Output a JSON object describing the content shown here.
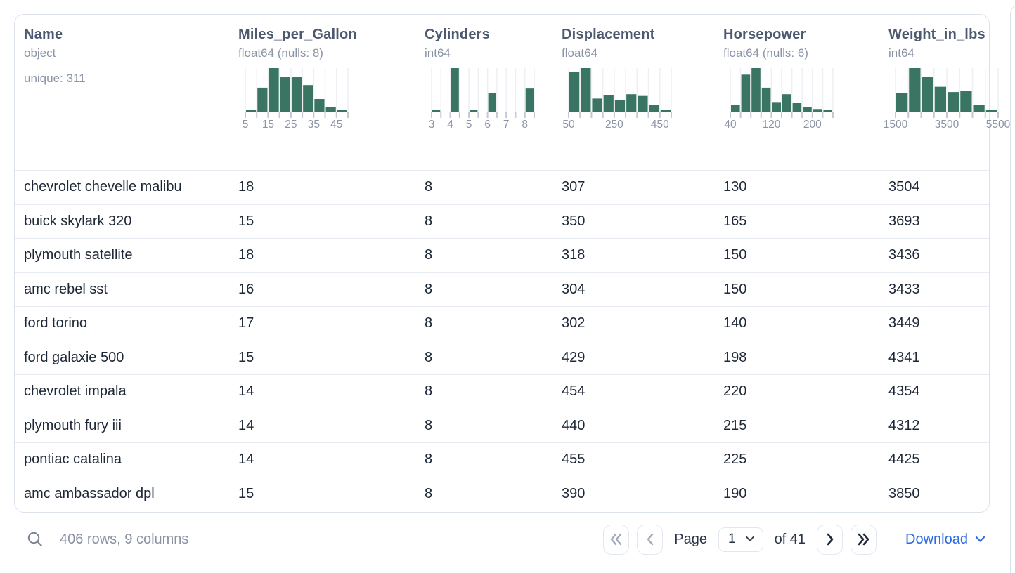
{
  "table": {
    "columns": [
      {
        "name": "Name",
        "type": "object",
        "extra": "unique: 311",
        "histogram": null
      },
      {
        "name": "Miles_per_Gallon",
        "type": "float64 (nulls: 8)",
        "histogram": {
          "bins": [
            3,
            55,
            100,
            79,
            79,
            61,
            29,
            11,
            3
          ],
          "ticks": [
            "5",
            "",
            "15",
            "",
            "25",
            "",
            "35",
            "",
            "45",
            ""
          ]
        }
      },
      {
        "name": "Cylinders",
        "type": "int64",
        "histogram": {
          "bins": [
            4,
            0,
            100,
            0,
            3,
            0,
            42,
            0,
            0,
            0,
            53
          ],
          "ticks": [
            "3",
            "",
            "4",
            "",
            "5",
            "",
            "6",
            "",
            "7",
            "",
            "8",
            ""
          ]
        }
      },
      {
        "name": "Displacement",
        "type": "float64",
        "histogram": {
          "bins": [
            92,
            100,
            30,
            38,
            27,
            40,
            36,
            15,
            4
          ],
          "ticks": [
            "50",
            "",
            "",
            "",
            "250",
            "",
            "",
            "",
            "450",
            ""
          ]
        }
      },
      {
        "name": "Horsepower",
        "type": "float64 (nulls: 6)",
        "histogram": {
          "bins": [
            15,
            85,
            100,
            55,
            22,
            40,
            20,
            10,
            6,
            4
          ],
          "ticks": [
            "40",
            "",
            "",
            "",
            "120",
            "",
            "",
            "",
            "200",
            "",
            ""
          ]
        }
      },
      {
        "name": "Weight_in_lbs",
        "type": "int64",
        "histogram": {
          "bins": [
            42,
            100,
            80,
            57,
            45,
            48,
            16,
            3
          ],
          "ticks": [
            "1500",
            "",
            "",
            "",
            "3500",
            "",
            "",
            "",
            "5500"
          ]
        }
      }
    ],
    "rows": [
      [
        "chevrolet chevelle malibu",
        "18",
        "8",
        "307",
        "130",
        "3504"
      ],
      [
        "buick skylark 320",
        "15",
        "8",
        "350",
        "165",
        "3693"
      ],
      [
        "plymouth satellite",
        "18",
        "8",
        "318",
        "150",
        "3436"
      ],
      [
        "amc rebel sst",
        "16",
        "8",
        "304",
        "150",
        "3433"
      ],
      [
        "ford torino",
        "17",
        "8",
        "302",
        "140",
        "3449"
      ],
      [
        "ford galaxie 500",
        "15",
        "8",
        "429",
        "198",
        "4341"
      ],
      [
        "chevrolet impala",
        "14",
        "8",
        "454",
        "220",
        "4354"
      ],
      [
        "plymouth fury iii",
        "14",
        "8",
        "440",
        "215",
        "4312"
      ],
      [
        "pontiac catalina",
        "14",
        "8",
        "455",
        "225",
        "4425"
      ],
      [
        "amc ambassador dpl",
        "15",
        "8",
        "390",
        "190",
        "3850"
      ]
    ]
  },
  "footer": {
    "status": "406 rows, 9 columns",
    "search_icon": "search-icon",
    "page_label": "Page",
    "page_value": "1",
    "total_label": "of 41",
    "first_icon": "chevrons-left",
    "prev_icon": "chevron-left",
    "next_icon": "chevron-right",
    "last_icon": "chevrons-right",
    "download_label": "Download"
  },
  "colors": {
    "histogram_bar": "#3a7563",
    "link_blue": "#2b6ae0",
    "title_text": "#4d5970",
    "meta_text": "#8b94a6",
    "row_text": "#1d2736",
    "card_border": "#dce2ec"
  }
}
